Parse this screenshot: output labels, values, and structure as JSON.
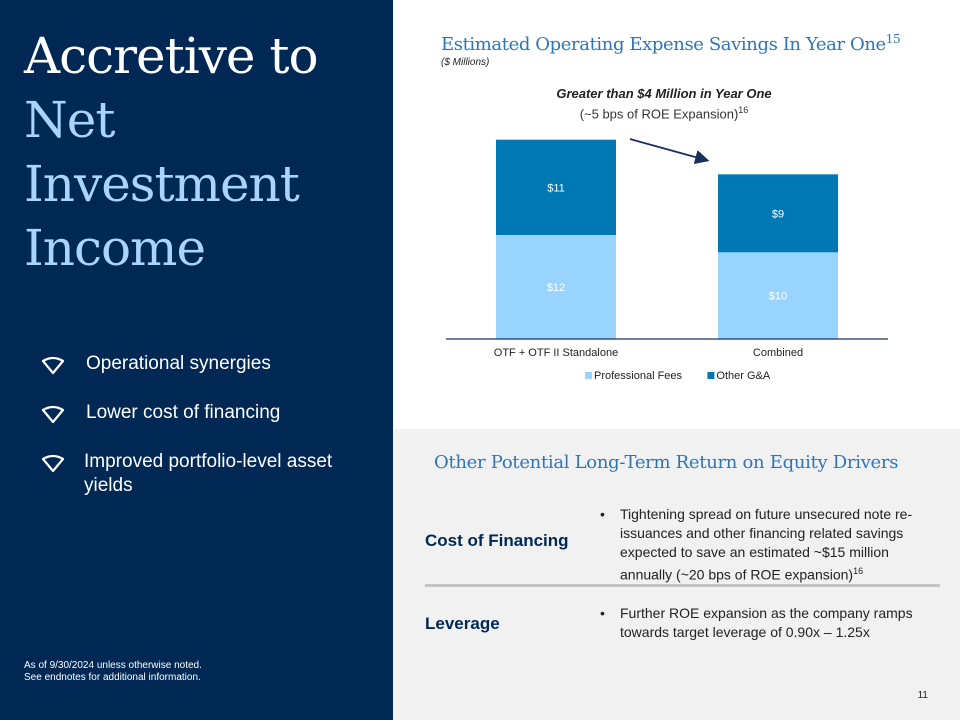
{
  "headline": {
    "line1": "Accretive to",
    "line2": "Net",
    "line3": "Investment",
    "line4": "Income"
  },
  "bullets": [
    {
      "icon": "boat-hull-icon",
      "text": "Operational synergies"
    },
    {
      "icon": "boat-hull-icon",
      "text": "Lower cost of financing"
    },
    {
      "icon": "boat-hull-icon",
      "text": "Improved portfolio-level asset yields"
    }
  ],
  "footnote": {
    "line1": "As of 9/30/2024 unless otherwise noted.",
    "line2": "See endnotes for additional information."
  },
  "chart_header": {
    "title": "Estimated Operating Expense Savings In Year One",
    "title_sup": "15",
    "unit": "($ Millions)"
  },
  "callout": {
    "bold": "Greater than $4 Million in Year One",
    "sub": "(~5 bps of ROE Expansion)",
    "sub_sup": "16"
  },
  "chart_data": {
    "type": "bar",
    "stacked": true,
    "categories": [
      "OTF + OTF II Standalone",
      "Combined"
    ],
    "series": [
      {
        "name": "Professional Fees",
        "values": [
          12,
          10
        ],
        "labels": [
          "$12",
          "$10"
        ],
        "color": "#99d3ff"
      },
      {
        "name": "Other G&A",
        "values": [
          11,
          9
        ],
        "labels": [
          "$11",
          "$9"
        ],
        "color": "#0078b4"
      }
    ],
    "legend_position": "bottom",
    "ylim": [
      0,
      24
    ],
    "grid": false,
    "annotation": "arrow-down-right"
  },
  "lower": {
    "title": "Other Potential Long-Term Return on Equity Drivers",
    "drivers": [
      {
        "label": "Cost of Financing",
        "bullet": "•",
        "text": "Tightening spread on future unsecured note re-issuances and other financing related savings expected to save an estimated ~$15 million annually (~20 bps of ROE expansion)",
        "sup": "16"
      },
      {
        "label": "Leverage",
        "bullet": "•",
        "text": "Further ROE expansion as the company ramps towards target leverage of 0.90x – 1.25x",
        "sup": ""
      }
    ]
  },
  "page_number": "11",
  "colors": {
    "navy": "#002855",
    "light_blue_text": "#a8d4ff",
    "title_blue": "#2e75b6",
    "professional_fees": "#99d3ff",
    "other_ga": "#0078b4"
  }
}
